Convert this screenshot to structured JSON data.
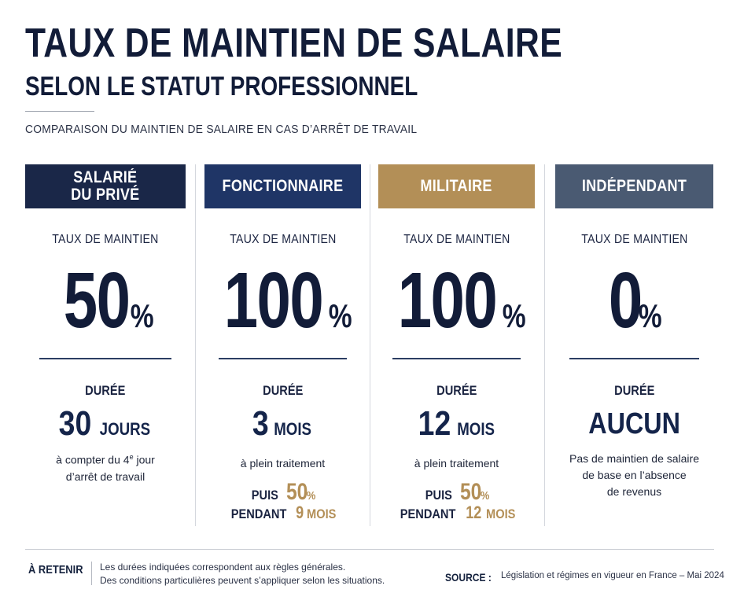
{
  "header": {
    "title_line1": "TAUX DE MAINTIEN DE SALAIRE",
    "title_line2": "SELON LE STATUT PROFESSIONNEL",
    "subtitle": "COMPARAISON DU MAINTIEN DE SALAIRE EN CAS D’ARRÊT DE TRAVAIL"
  },
  "colors": {
    "navy": "#1a2748",
    "royal": "#1f3566",
    "gold": "#b38f57",
    "slate": "#4a5a72",
    "accent_gold_text": "#b38f57"
  },
  "columns": [
    {
      "header": "SALARIÉ\nDU PRIVÉ",
      "taux_label": "TAUX DE MAINTIEN",
      "rate_value": "50",
      "rate_symbol": "%",
      "duree_label": "DURÉE",
      "duree_number": "30",
      "duree_unit": "JOURS",
      "desc_part1": "à compter du 4",
      "desc_sup": "e",
      "desc_part2": " jour",
      "desc_line2": "d’arrêt de travail"
    },
    {
      "header": "FONCTIONNAIRE",
      "taux_label": "TAUX DE MAINTIEN",
      "rate_value": "100",
      "rate_symbol": "%",
      "duree_label": "DURÉE",
      "duree_number": "3",
      "duree_unit": "MOIS",
      "desc": "à plein traitement",
      "then_label": "PUIS",
      "then_value": "50",
      "then_symbol": "%",
      "during_label": "PENDANT",
      "during_number": "9",
      "during_unit": "MOIS"
    },
    {
      "header": "MILITAIRE",
      "taux_label": "TAUX DE MAINTIEN",
      "rate_value": "100",
      "rate_symbol": "%",
      "duree_label": "DURÉE",
      "duree_number": "12",
      "duree_unit": "MOIS",
      "desc": "à plein traitement",
      "then_label": "PUIS",
      "then_value": "50",
      "then_symbol": "%",
      "during_label": "PENDANT",
      "during_number": "12",
      "during_unit": "MOIS"
    },
    {
      "header": "INDÉPENDANT",
      "taux_label": "TAUX DE MAINTIEN",
      "rate_value": "0",
      "rate_symbol": "%",
      "duree_label": "DURÉE",
      "duree_number": "AUCUN",
      "desc_line1": "Pas de maintien de salaire",
      "desc_line2": "de base en l’absence",
      "desc_line3": "de revenus"
    }
  ],
  "footer": {
    "retenir_label": "À RETENIR",
    "note_line1": "Les durées indiquées correspondent aux règles générales.",
    "note_line2": "Des conditions particulières peuvent s’appliquer selon les situations.",
    "source_label": "SOURCE :",
    "source_text": "Législation et régimes en vigueur en France – Mai 2024"
  }
}
